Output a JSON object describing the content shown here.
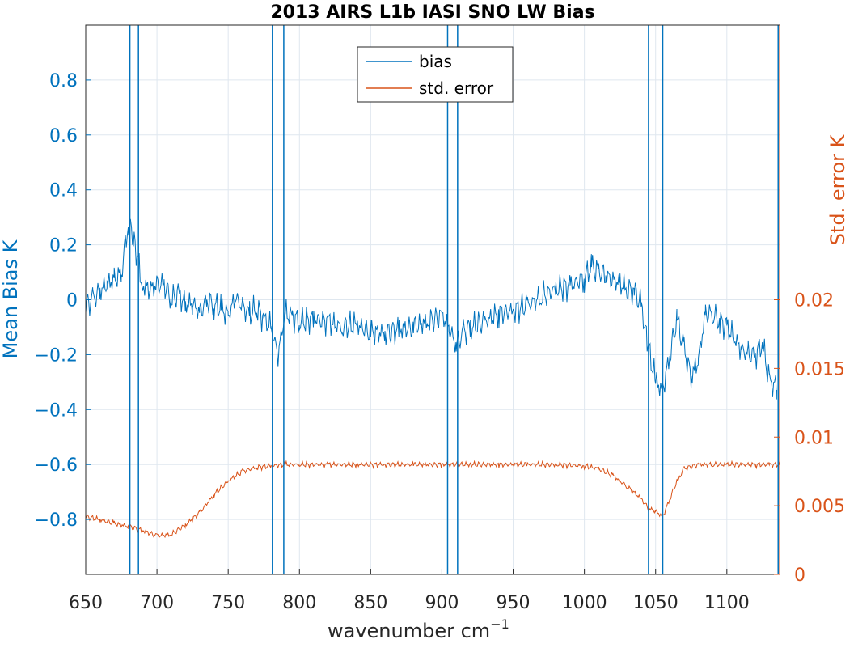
{
  "chart_data": {
    "type": "line",
    "title": "2013 AIRS L1b IASI SNO LW Bias",
    "xlabel_main": "wavenumber cm",
    "xlabel_sup": "−1",
    "ylabel_left": "Mean Bias K",
    "ylabel_right": "Std. error K",
    "xlim": [
      650,
      1137
    ],
    "ylim_left": [
      -1.0,
      1.0
    ],
    "ylim_right": [
      0,
      0.04
    ],
    "x_ticks": [
      650,
      700,
      750,
      800,
      850,
      900,
      950,
      1000,
      1050,
      1100
    ],
    "x_tick_labels": [
      "650",
      "700",
      "750",
      "800",
      "850",
      "900",
      "950",
      "1000",
      "1050",
      "1100"
    ],
    "y_left_ticks": [
      0.8,
      0.6,
      0.4,
      0.2,
      0,
      -0.2,
      -0.4,
      -0.6,
      -0.8
    ],
    "y_left_tick_labels": [
      "0.8",
      "0.6",
      "0.4",
      "0.2",
      "0",
      "−0.2",
      "−0.4",
      "−0.6",
      "−0.8"
    ],
    "y_right_ticks": [
      0.02,
      0.015,
      0.01,
      0.005,
      0
    ],
    "y_right_tick_labels": [
      "0.02",
      "0.015",
      "0.01",
      "0.005",
      "0"
    ],
    "grid": true,
    "legend_placement": "top-center",
    "colors": {
      "bias": "#0072bd",
      "std_error": "#d95319",
      "axis": "#262626",
      "grid": "#dfe7ef"
    },
    "vertical_lines": [
      681,
      687,
      781,
      789,
      904,
      911,
      1045,
      1055,
      1136
    ],
    "series": [
      {
        "name": "bias",
        "axis": "left",
        "x": [
          650,
          655,
          660,
          665,
          670,
          675,
          680,
          684,
          690,
          695,
          700,
          705,
          710,
          715,
          720,
          725,
          730,
          735,
          740,
          745,
          750,
          755,
          760,
          765,
          770,
          775,
          780,
          785,
          790,
          795,
          800,
          810,
          820,
          830,
          840,
          850,
          860,
          870,
          880,
          890,
          900,
          905,
          910,
          915,
          920,
          930,
          940,
          950,
          960,
          970,
          980,
          990,
          1000,
          1005,
          1010,
          1015,
          1020,
          1025,
          1030,
          1035,
          1040,
          1044,
          1050,
          1055,
          1060,
          1065,
          1070,
          1075,
          1080,
          1085,
          1090,
          1095,
          1100,
          1105,
          1110,
          1115,
          1120,
          1125,
          1130,
          1135
        ],
        "y": [
          -0.02,
          0.0,
          0.03,
          0.06,
          0.07,
          0.1,
          0.28,
          0.22,
          0.05,
          0.04,
          0.05,
          0.06,
          0.0,
          0.02,
          -0.02,
          -0.01,
          -0.05,
          0.0,
          -0.02,
          -0.03,
          -0.06,
          0.01,
          -0.03,
          -0.05,
          -0.03,
          -0.07,
          -0.1,
          -0.2,
          -0.05,
          -0.06,
          -0.08,
          -0.07,
          -0.08,
          -0.1,
          -0.09,
          -0.12,
          -0.12,
          -0.11,
          -0.1,
          -0.08,
          -0.06,
          -0.1,
          -0.17,
          -0.12,
          -0.1,
          -0.08,
          -0.05,
          -0.04,
          -0.02,
          0.01,
          0.04,
          0.05,
          0.08,
          0.12,
          0.1,
          0.09,
          0.07,
          0.06,
          0.04,
          0.03,
          -0.02,
          -0.15,
          -0.3,
          -0.33,
          -0.2,
          -0.07,
          -0.18,
          -0.28,
          -0.22,
          -0.05,
          -0.05,
          -0.08,
          -0.1,
          -0.14,
          -0.18,
          -0.2,
          -0.2,
          -0.16,
          -0.3,
          -0.32
        ]
      },
      {
        "name": "std. error",
        "axis": "right",
        "x": [
          650,
          660,
          670,
          680,
          690,
          700,
          710,
          720,
          730,
          740,
          750,
          760,
          770,
          780,
          790,
          800,
          820,
          840,
          860,
          880,
          900,
          920,
          940,
          960,
          980,
          1000,
          1010,
          1020,
          1030,
          1040,
          1045,
          1050,
          1055,
          1060,
          1065,
          1070,
          1080,
          1090,
          1100,
          1110,
          1120,
          1130,
          1137
        ],
        "y": [
          0.0042,
          0.004,
          0.0037,
          0.0035,
          0.0032,
          0.0028,
          0.0029,
          0.0036,
          0.0045,
          0.0058,
          0.0068,
          0.0075,
          0.0078,
          0.0079,
          0.008,
          0.008,
          0.008,
          0.008,
          0.008,
          0.008,
          0.008,
          0.008,
          0.008,
          0.008,
          0.008,
          0.0079,
          0.0077,
          0.0072,
          0.0064,
          0.0055,
          0.0048,
          0.0046,
          0.0042,
          0.0055,
          0.0068,
          0.0077,
          0.008,
          0.008,
          0.008,
          0.008,
          0.008,
          0.008,
          0.008
        ]
      }
    ]
  }
}
